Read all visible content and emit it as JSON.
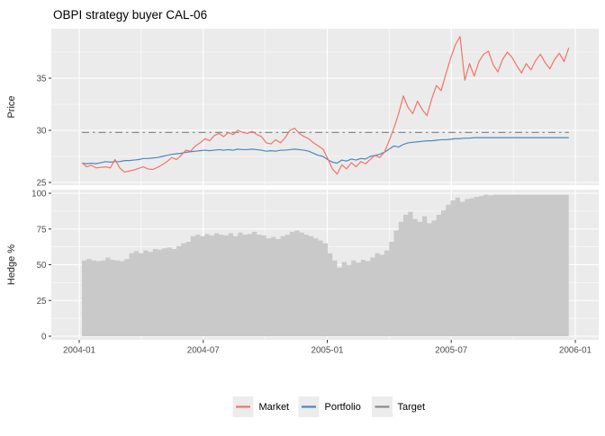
{
  "title": "OBPI strategy buyer CAL-06",
  "panels": {
    "price": {
      "ylabel": "Price",
      "yticks": [
        "25",
        "30",
        "35"
      ],
      "ytick_values": [
        25,
        30,
        35
      ],
      "minor_yticks": [
        27.5,
        32.5,
        37.5
      ]
    },
    "hedge": {
      "ylabel": "Hedge %",
      "yticks": [
        "0",
        "25",
        "50",
        "75",
        "100"
      ],
      "ytick_values": [
        0,
        25,
        50,
        75,
        100
      ],
      "minor_yticks": [
        12.5,
        37.5,
        62.5,
        87.5
      ]
    }
  },
  "x_axis": {
    "tick_labels": [
      "2004-01",
      "2004-07",
      "2005-01",
      "2005-07",
      "2006-01"
    ]
  },
  "legend": {
    "items": [
      {
        "label": "Market",
        "color": "#F2746A"
      },
      {
        "label": "Portfolio",
        "color": "#4D87BE"
      },
      {
        "label": "Target",
        "color": "#8A8A8A"
      }
    ]
  },
  "colors": {
    "market": "#F2746A",
    "portfolio": "#4D87BE",
    "target": "#808080",
    "hedge_fill": "#C9C9C9",
    "panel_background": "#EBEBEB",
    "gridline": "#FFFFFF",
    "axis_text": "#4D4D4D",
    "axis_title": "#1A1A1A",
    "tick_mark": "#333333",
    "legend_key_background": "#ECECEC",
    "title_text": "#000000"
  },
  "chart_data": [
    {
      "type": "line",
      "panel": "Price",
      "title": "OBPI strategy buyer CAL-06",
      "ylabel": "Price",
      "ylim": [
        24.7,
        39.7
      ],
      "xlim": [
        "2004-01",
        "2006-01"
      ],
      "x_start": "2004-01-05",
      "x_step": "1 week",
      "grid": true,
      "legend_position": "bottom",
      "series": [
        {
          "name": "Market",
          "values": [
            26.9,
            26.5,
            26.65,
            26.4,
            26.45,
            26.5,
            26.4,
            27.2,
            26.4,
            26.0,
            26.1,
            26.2,
            26.35,
            26.5,
            26.3,
            26.25,
            26.45,
            26.7,
            27.0,
            27.4,
            27.2,
            27.6,
            28.1,
            28.0,
            28.5,
            28.8,
            29.2,
            29.0,
            29.5,
            29.7,
            29.4,
            29.8,
            29.6,
            30.0,
            29.8,
            29.7,
            29.9,
            29.6,
            29.4,
            28.8,
            28.7,
            29.1,
            28.8,
            29.3,
            30.0,
            30.2,
            29.7,
            29.4,
            29.2,
            28.8,
            28.5,
            28.2,
            27.3,
            26.3,
            25.8,
            26.7,
            26.3,
            26.9,
            26.5,
            27.0,
            26.8,
            27.2,
            27.6,
            27.4,
            27.9,
            29.0,
            30.2,
            31.6,
            33.3,
            32.2,
            31.6,
            32.8,
            32.0,
            31.4,
            33.0,
            34.3,
            33.8,
            35.4,
            36.9,
            38.2,
            39.0,
            34.8,
            36.4,
            35.2,
            36.6,
            37.3,
            37.6,
            36.3,
            35.6,
            36.8,
            37.5,
            37.0,
            36.2,
            35.5,
            36.4,
            35.8,
            36.7,
            37.3,
            36.5,
            35.9,
            36.8,
            37.4,
            36.6,
            37.9
          ]
        },
        {
          "name": "Portfolio",
          "values": [
            26.85,
            26.8,
            26.85,
            26.8,
            26.9,
            27.0,
            26.95,
            27.0,
            27.0,
            27.1,
            27.1,
            27.15,
            27.2,
            27.3,
            27.3,
            27.35,
            27.4,
            27.5,
            27.6,
            27.7,
            27.75,
            27.8,
            27.9,
            27.95,
            28.0,
            28.05,
            28.1,
            28.05,
            28.1,
            28.15,
            28.1,
            28.15,
            28.1,
            28.2,
            28.15,
            28.15,
            28.2,
            28.15,
            28.1,
            28.0,
            28.05,
            28.0,
            28.1,
            28.1,
            28.15,
            28.2,
            28.15,
            28.1,
            28.0,
            27.8,
            27.6,
            27.5,
            27.2,
            26.95,
            26.85,
            27.15,
            27.05,
            27.25,
            27.15,
            27.3,
            27.25,
            27.5,
            27.6,
            27.7,
            27.9,
            28.2,
            28.5,
            28.4,
            28.65,
            28.8,
            28.85,
            28.9,
            28.95,
            29.0,
            29.0,
            29.05,
            29.1,
            29.1,
            29.15,
            29.2,
            29.2,
            29.25,
            29.25,
            29.3,
            29.3,
            29.3,
            29.3,
            29.3,
            29.3,
            29.3,
            29.3,
            29.3,
            29.3,
            29.3,
            29.3,
            29.3,
            29.3,
            29.3,
            29.3,
            29.3,
            29.3,
            29.3,
            29.3,
            29.3
          ]
        },
        {
          "name": "Target",
          "constant": 29.8,
          "style": "dashdot"
        }
      ]
    },
    {
      "type": "area",
      "panel": "Hedge %",
      "name": "Hedge",
      "ylabel": "Hedge %",
      "ylim": [
        0,
        100
      ],
      "x_start": "2004-01-05",
      "x_step": "1 week",
      "grid": true,
      "values": [
        53,
        54,
        53,
        52.5,
        53,
        55,
        53.5,
        53,
        52.5,
        54,
        58,
        59.5,
        58,
        60,
        59,
        61,
        60.5,
        61.5,
        62,
        61,
        63,
        65,
        66,
        70,
        71,
        70,
        71.5,
        70.5,
        72,
        71,
        70.5,
        72,
        70,
        72.5,
        71,
        71.5,
        73,
        71,
        70.5,
        68.5,
        69.5,
        68,
        70,
        71,
        73,
        74,
        72.5,
        71,
        70,
        68.5,
        67,
        65,
        58,
        53,
        48,
        52,
        50,
        53,
        51.5,
        53.5,
        52.5,
        55,
        58,
        57,
        60,
        66,
        74,
        80,
        85,
        87,
        82,
        80,
        84,
        79,
        81,
        85,
        88,
        92,
        95,
        97,
        94,
        96,
        96.5,
        97.5,
        98,
        99,
        98.5,
        99,
        99,
        99,
        99,
        99,
        99,
        99,
        99,
        99,
        99,
        99,
        99,
        99,
        99,
        99,
        99,
        99
      ]
    }
  ]
}
